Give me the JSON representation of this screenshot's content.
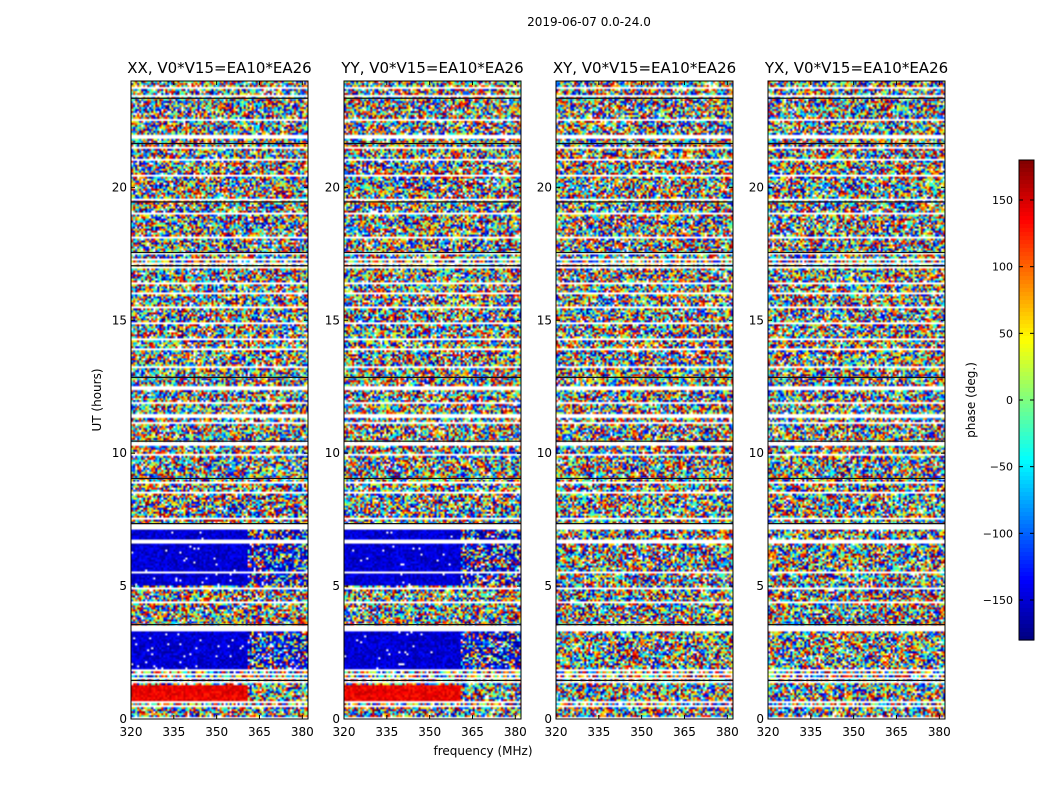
{
  "figure": {
    "suptitle": "2019-06-07 0.0-24.0",
    "colorbar_label": "phase (deg.)"
  },
  "colormap": [
    "#00007f",
    "#0000ff",
    "#007fff",
    "#00ffff",
    "#7fff7f",
    "#ffff00",
    "#ff7f00",
    "#ff0000",
    "#7f0000"
  ],
  "chart_data": [
    {
      "type": "heatmap",
      "title": "XX, V0*V15=EA10*EA26",
      "xlabel": "",
      "ylabel": "UT (hours)",
      "xlim": [
        320,
        382
      ],
      "ylim": [
        0,
        24
      ],
      "xticks": [
        320,
        335,
        350,
        365,
        380
      ],
      "yticks": [
        0,
        5,
        10,
        15,
        20
      ],
      "value": "phase (deg.)",
      "features": {
        "noise": "random phase across panel",
        "band_blue_ut": [
          5.0,
          7.2
        ],
        "band_blue_phase_deg": -150,
        "band_blue_ut_2": [
          1.9,
          3.3
        ],
        "band_red_ut": [
          0.7,
          1.3
        ],
        "band_red_phase_deg": 140,
        "band_freq_edge_mhz": 361
      }
    },
    {
      "type": "heatmap",
      "title": "YY, V0*V15=EA10*EA26",
      "xlabel": "frequency (MHz)",
      "ylabel": "",
      "xlim": [
        320,
        382
      ],
      "ylim": [
        0,
        24
      ],
      "xticks": [
        320,
        335,
        350,
        365,
        380
      ],
      "yticks": [
        0,
        5,
        10,
        15,
        20
      ],
      "value": "phase (deg.)",
      "features": {
        "noise": "random phase across panel",
        "band_blue_ut": [
          5.0,
          7.2
        ],
        "band_blue_phase_deg": -150,
        "band_blue_ut_2": [
          1.9,
          3.3
        ],
        "band_red_ut": [
          0.7,
          1.3
        ],
        "band_red_phase_deg": 140,
        "band_freq_edge_mhz": 361
      }
    },
    {
      "type": "heatmap",
      "title": "XY, V0*V15=EA10*EA26",
      "xlabel": "",
      "ylabel": "",
      "xlim": [
        320,
        382
      ],
      "ylim": [
        0,
        24
      ],
      "xticks": [
        320,
        335,
        350,
        365,
        380
      ],
      "yticks": [
        0,
        5,
        10,
        15,
        20
      ],
      "value": "phase (deg.)",
      "features": {
        "noise": "random phase across panel"
      }
    },
    {
      "type": "heatmap",
      "title": "YX, V0*V15=EA10*EA26",
      "xlabel": "",
      "ylabel": "",
      "xlim": [
        320,
        382
      ],
      "ylim": [
        0,
        24
      ],
      "xticks": [
        320,
        335,
        350,
        365,
        380
      ],
      "yticks": [
        0,
        5,
        10,
        15,
        20
      ],
      "value": "phase (deg.)",
      "features": {
        "noise": "random phase across panel"
      }
    }
  ],
  "colorbar": {
    "range": [
      -180,
      180
    ],
    "ticks": [
      -150,
      -100,
      -50,
      0,
      50,
      100,
      150
    ],
    "tick_labels": [
      "−150",
      "−100",
      "−50",
      "0",
      "50",
      "100",
      "150"
    ]
  },
  "flagged_ut": [
    0.05,
    0.55,
    0.65,
    1.45,
    1.55,
    1.75,
    1.85,
    3.35,
    3.45,
    3.55,
    4.45,
    4.95,
    5.55,
    6.75,
    7.25,
    7.35,
    7.55,
    8.55,
    8.95,
    9.95,
    10.45,
    11.15,
    11.45,
    11.95,
    12.45,
    12.55,
    13.25,
    13.95,
    14.35,
    14.95,
    15.55,
    16.05,
    16.45,
    17.05,
    17.15,
    17.35,
    17.55,
    18.15,
    19.05,
    19.55,
    20.45,
    21.05,
    21.55,
    21.95,
    22.55,
    23.45,
    23.75
  ]
}
